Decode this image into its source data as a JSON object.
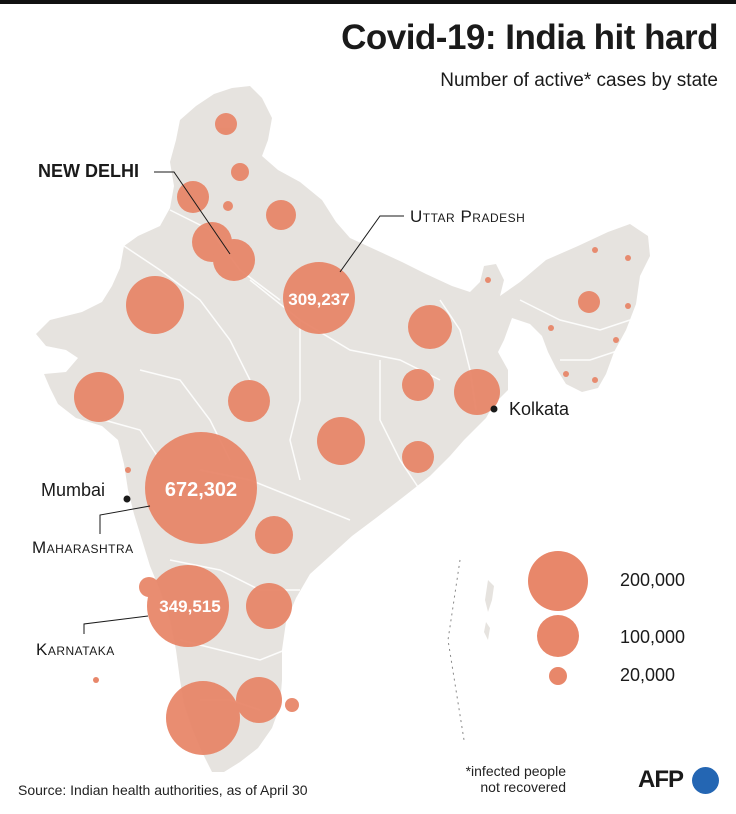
{
  "title": "Covid-19: India hit hard",
  "subtitle": "Number of active* cases by state",
  "colors": {
    "bubble": "#e8876a",
    "land": "#e6e3df",
    "border": "#ffffff",
    "text": "#1a1a1a",
    "afp_blue": "#2466b3"
  },
  "labels": {
    "new_delhi": "NEW DELHI",
    "uttar_pradesh": "Uttar Pradesh",
    "mumbai": "Mumbai",
    "maharashtra": "Maharashtra",
    "karnataka": "Karnataka",
    "kolkata": "Kolkata"
  },
  "values": {
    "maharashtra": "672,302",
    "karnataka": "349,515",
    "uttar_pradesh": "309,237"
  },
  "legend": {
    "large": "200,000",
    "medium": "100,000",
    "small": "20,000"
  },
  "note": "*infected people not recovered",
  "source": "Source: Indian health authorities, as of April 30",
  "brand": "AFP"
}
